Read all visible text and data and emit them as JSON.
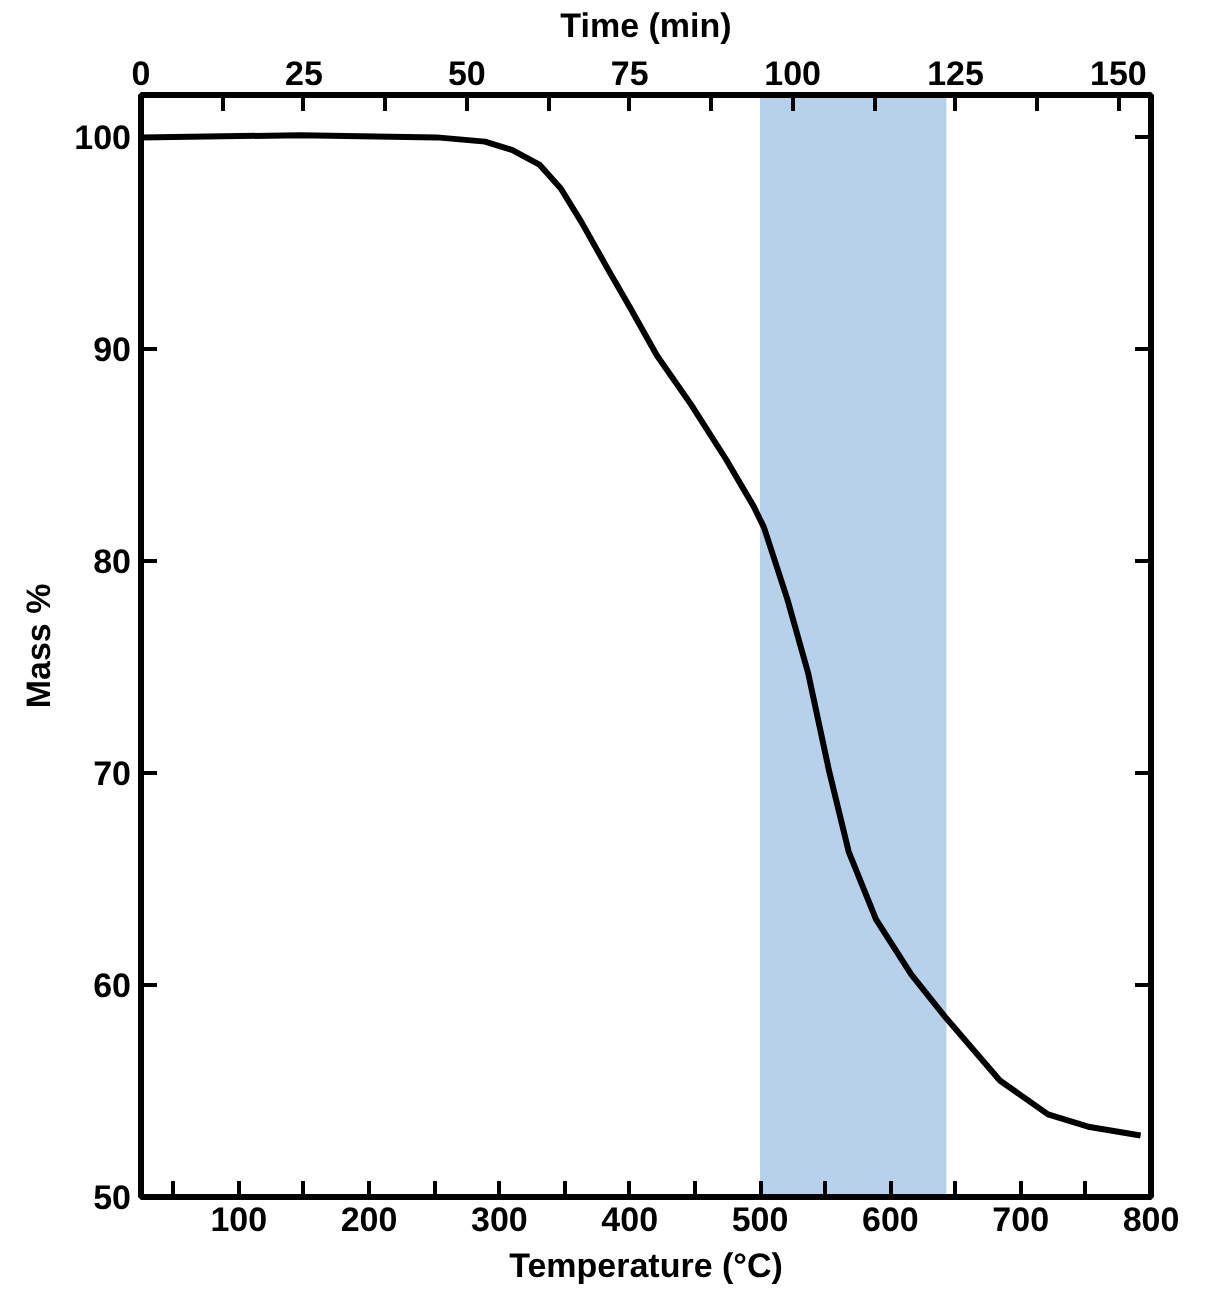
{
  "chart_data": {
    "type": "line",
    "xlabel": "Temperature (°C)",
    "ylabel": "Mass %",
    "x2label": "Time (min)",
    "xlim": [
      25,
      800
    ],
    "xticks": [
      {
        "value": 50,
        "label": null
      },
      100,
      {
        "value": 150,
        "label": null
      },
      200,
      {
        "value": 250,
        "label": null
      },
      300,
      {
        "value": 350,
        "label": null
      },
      400,
      {
        "value": 450,
        "label": null
      },
      500,
      {
        "value": 550,
        "label": null
      },
      600,
      {
        "value": 650,
        "label": null
      },
      700,
      {
        "value": 750,
        "label": null
      },
      800
    ],
    "x2lim": [
      0,
      155
    ],
    "x2ticks": [
      0,
      {
        "value": 12.5,
        "label": null
      },
      25,
      {
        "value": 37.5,
        "label": null
      },
      50,
      {
        "value": 62.5,
        "label": null
      },
      75,
      {
        "value": 87.5,
        "label": null
      },
      100,
      {
        "value": 112.5,
        "label": null
      },
      125,
      {
        "value": 137.5,
        "label": null
      },
      150
    ],
    "ylim": [
      50,
      102
    ],
    "yticks": [
      50,
      60,
      70,
      80,
      90,
      100
    ],
    "grid": false,
    "series": [
      {
        "color": "#000000",
        "x": [
          25,
          147,
          252,
          289,
          310,
          331,
          347,
          363,
          384,
          400,
          421,
          447,
          474,
          495,
          503,
          521,
          537,
          553,
          568,
          589,
          616,
          642,
          684,
          721,
          753,
          792
        ],
        "values": [
          100.0,
          100.1,
          100.0,
          99.8,
          99.4,
          98.7,
          97.6,
          96.0,
          93.7,
          92.0,
          89.7,
          87.4,
          84.8,
          82.6,
          81.6,
          78.2,
          74.7,
          70.1,
          66.3,
          63.1,
          60.5,
          58.5,
          55.5,
          53.9,
          53.3,
          52.9
        ]
      }
    ],
    "bands": [
      {
        "axis": "x",
        "from": 500,
        "to": 643,
        "color": "#b7d1ea"
      }
    ]
  }
}
